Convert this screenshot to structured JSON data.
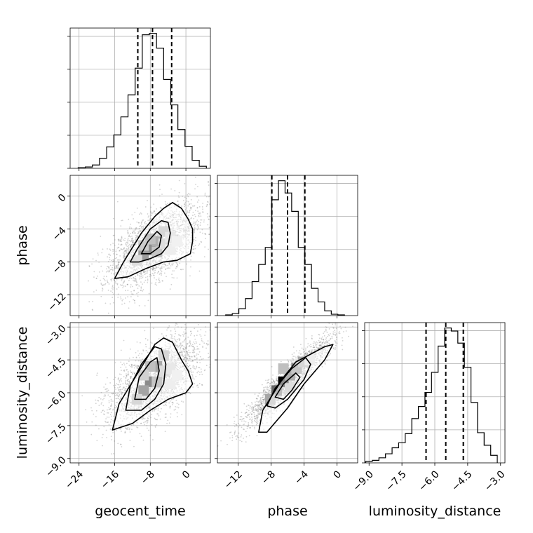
{
  "chart_data": {
    "type": "corner",
    "parameters": [
      "geocent_time",
      "phase",
      "luminosity_distance"
    ],
    "grid": true,
    "colors": {
      "line": "#000000",
      "grid": "#b0b0b0",
      "points": "#7f7f7f"
    },
    "ranges": {
      "geocent_time": [
        -26,
        5.5
      ],
      "phase": [
        -14.5,
        2.5
      ],
      "luminosity_distance": [
        -9.2,
        -2.8
      ]
    },
    "ticks": {
      "geocent_time": {
        "values": [
          -24,
          -16,
          -8,
          0
        ],
        "labels": [
          "−24",
          "−16",
          "−8",
          "0"
        ]
      },
      "phase": {
        "values": [
          -12,
          -8,
          -4,
          0
        ],
        "labels": [
          "−12",
          "−8",
          "−4",
          "0"
        ]
      },
      "luminosity_distance": {
        "values": [
          -9.0,
          -7.5,
          -6.0,
          -4.5,
          -3.0
        ],
        "labels": [
          "−9.0",
          "−7.5",
          "−6.0",
          "−4.5",
          "−3.0"
        ]
      }
    },
    "quantiles": {
      "geocent_time": [
        -10.8,
        -7.5,
        -3.2
      ],
      "phase": [
        -7.9,
        -6.0,
        -3.9
      ],
      "luminosity_distance": [
        -6.4,
        -5.5,
        -4.7
      ]
    },
    "histograms": {
      "geocent_time": {
        "edges": [
          -24.2,
          -22.6,
          -21.0,
          -19.4,
          -17.8,
          -16.2,
          -14.6,
          -13.0,
          -11.4,
          -9.8,
          -8.2,
          -6.6,
          -5.0,
          -3.4,
          -1.8,
          -0.2,
          1.4,
          3.0,
          4.6
        ],
        "counts": [
          1,
          2,
          5,
          15,
          32,
          50,
          77,
          110,
          150,
          200,
          202,
          180,
          133,
          95,
          58,
          33,
          12,
          3
        ]
      },
      "phase": {
        "edges": [
          -13.5,
          -12.7,
          -11.9,
          -11.1,
          -10.3,
          -9.5,
          -8.7,
          -7.9,
          -7.1,
          -6.3,
          -5.5,
          -4.7,
          -3.9,
          -3.1,
          -2.3,
          -1.5,
          -0.7,
          0.1,
          0.9
        ],
        "counts": [
          1,
          3,
          10,
          25,
          50,
          75,
          100,
          170,
          198,
          180,
          153,
          100,
          75,
          40,
          20,
          7,
          2,
          1
        ]
      },
      "luminosity_distance": {
        "edges": [
          -9.15,
          -8.85,
          -8.55,
          -8.25,
          -7.95,
          -7.65,
          -7.35,
          -7.05,
          -6.75,
          -6.45,
          -6.15,
          -5.85,
          -5.55,
          -5.25,
          -4.95,
          -4.65,
          -4.35,
          -4.05,
          -3.75,
          -3.45,
          -3.15
        ],
        "counts": [
          3,
          5,
          10,
          18,
          30,
          40,
          58,
          88,
          112,
          140,
          180,
          232,
          268,
          262,
          238,
          190,
          120,
          60,
          35,
          15
        ]
      }
    },
    "contours": {
      "phase_vs_geocent_time": [
        [
          [
            -16.0,
            -10.0
          ],
          [
            -14.0,
            -8.0
          ],
          [
            -10.0,
            -4.5
          ],
          [
            -7.0,
            -2.5
          ],
          [
            -5.0,
            -1.5
          ],
          [
            -3.0,
            -0.8
          ],
          [
            -1.0,
            -1.5
          ],
          [
            0.5,
            -2.8
          ],
          [
            1.5,
            -4.0
          ],
          [
            1.5,
            -5.5
          ],
          [
            1.0,
            -7.0
          ],
          [
            -2.0,
            -7.8
          ],
          [
            -5.0,
            -8.0
          ],
          [
            -9.0,
            -8.8
          ],
          [
            -13.0,
            -9.8
          ],
          [
            -16.0,
            -10.0
          ]
        ],
        [
          [
            -12.5,
            -8.0
          ],
          [
            -11.0,
            -6.5
          ],
          [
            -8.0,
            -4.0
          ],
          [
            -5.5,
            -3.0
          ],
          [
            -4.0,
            -3.2
          ],
          [
            -3.5,
            -4.5
          ],
          [
            -4.0,
            -6.0
          ],
          [
            -5.5,
            -7.0
          ],
          [
            -8.0,
            -7.6
          ],
          [
            -10.5,
            -8.0
          ],
          [
            -12.5,
            -8.0
          ]
        ],
        [
          [
            -10.0,
            -7.0
          ],
          [
            -8.5,
            -5.5
          ],
          [
            -6.5,
            -4.3
          ],
          [
            -5.5,
            -4.8
          ],
          [
            -6.0,
            -6.2
          ],
          [
            -8.0,
            -7.0
          ],
          [
            -10.0,
            -7.0
          ]
        ]
      ],
      "luminosity_distance_vs_geocent_time": [
        [
          [
            -16.5,
            -7.7
          ],
          [
            -15.0,
            -6.5
          ],
          [
            -12.0,
            -5.5
          ],
          [
            -9.0,
            -4.5
          ],
          [
            -7.0,
            -3.8
          ],
          [
            -5.0,
            -3.5
          ],
          [
            -3.0,
            -3.7
          ],
          [
            -1.0,
            -4.5
          ],
          [
            0.5,
            -5.0
          ],
          [
            1.5,
            -5.6
          ],
          [
            0.0,
            -6.0
          ],
          [
            -4.0,
            -6.3
          ],
          [
            -8.0,
            -6.8
          ],
          [
            -12.0,
            -7.4
          ],
          [
            -16.5,
            -7.7
          ]
        ],
        [
          [
            -13.5,
            -6.8
          ],
          [
            -12.5,
            -5.7
          ],
          [
            -10.0,
            -4.7
          ],
          [
            -7.0,
            -3.9
          ],
          [
            -5.5,
            -4.0
          ],
          [
            -4.5,
            -4.7
          ],
          [
            -5.0,
            -5.6
          ],
          [
            -7.0,
            -6.3
          ],
          [
            -10.0,
            -6.8
          ],
          [
            -13.5,
            -6.8
          ]
        ],
        [
          [
            -11.5,
            -6.3
          ],
          [
            -10.5,
            -5.3
          ],
          [
            -8.0,
            -4.6
          ],
          [
            -6.5,
            -4.4
          ],
          [
            -6.0,
            -5.0
          ],
          [
            -7.0,
            -5.8
          ],
          [
            -9.0,
            -6.3
          ],
          [
            -11.5,
            -6.3
          ]
        ]
      ],
      "luminosity_distance_vs_phase": [
        [
          [
            -9.5,
            -7.8
          ],
          [
            -9.0,
            -6.8
          ],
          [
            -6.5,
            -5.3
          ],
          [
            -5.0,
            -4.6
          ],
          [
            -3.0,
            -4.2
          ],
          [
            -1.5,
            -3.9
          ],
          [
            -0.5,
            -3.8
          ],
          [
            -1.5,
            -4.5
          ],
          [
            -4.0,
            -5.6
          ],
          [
            -6.0,
            -6.7
          ],
          [
            -8.5,
            -7.8
          ],
          [
            -9.5,
            -7.8
          ]
        ],
        [
          [
            -8.5,
            -6.6
          ],
          [
            -7.5,
            -5.8
          ],
          [
            -5.5,
            -4.9
          ],
          [
            -3.8,
            -4.4
          ],
          [
            -3.2,
            -4.7
          ],
          [
            -4.0,
            -5.4
          ],
          [
            -6.0,
            -6.3
          ],
          [
            -7.5,
            -6.7
          ],
          [
            -8.5,
            -6.6
          ]
        ],
        [
          [
            -7.5,
            -6.2
          ],
          [
            -6.5,
            -5.6
          ],
          [
            -5.0,
            -5.1
          ],
          [
            -4.5,
            -5.3
          ],
          [
            -5.5,
            -5.9
          ],
          [
            -6.5,
            -6.3
          ],
          [
            -7.5,
            -6.2
          ]
        ]
      ]
    },
    "density_cells": {
      "phase_vs_geocent_time": [
        {
          "x": -8,
          "y": -6.5,
          "level": 1.0
        },
        {
          "x": -9.5,
          "y": -7.2,
          "level": 0.85
        },
        {
          "x": -6.5,
          "y": -5.5,
          "level": 0.7
        },
        {
          "x": -8,
          "y": -5.2,
          "level": 0.55
        },
        {
          "x": -6.5,
          "y": -6.8,
          "level": 0.5
        },
        {
          "x": -9.5,
          "y": -6.0,
          "level": 0.45
        },
        {
          "x": -5,
          "y": -4.3,
          "level": 0.35
        },
        {
          "x": -5,
          "y": -5.8,
          "level": 0.3
        },
        {
          "x": -11,
          "y": -7.8,
          "level": 0.3
        },
        {
          "x": -3.5,
          "y": -5.0,
          "level": 0.2
        },
        {
          "x": -3.5,
          "y": -6.5,
          "level": 0.15
        },
        {
          "x": -2,
          "y": -5.5,
          "level": 0.12
        }
      ],
      "luminosity_distance_vs_geocent_time": [
        {
          "x": -8,
          "y": -5.5,
          "level": 1.0
        },
        {
          "x": -9.5,
          "y": -5.9,
          "level": 0.8
        },
        {
          "x": -6.5,
          "y": -4.8,
          "level": 0.75
        },
        {
          "x": -8,
          "y": -4.8,
          "level": 0.55
        },
        {
          "x": -6.5,
          "y": -5.5,
          "level": 0.5
        },
        {
          "x": -9.5,
          "y": -5.2,
          "level": 0.4
        },
        {
          "x": -5,
          "y": -4.3,
          "level": 0.35
        },
        {
          "x": -11,
          "y": -6.3,
          "level": 0.35
        },
        {
          "x": -5,
          "y": -5.0,
          "level": 0.3
        },
        {
          "x": -3.5,
          "y": -4.9,
          "level": 0.2
        },
        {
          "x": -3.5,
          "y": -5.6,
          "level": 0.15
        },
        {
          "x": -2,
          "y": -5.2,
          "level": 0.12
        }
      ],
      "luminosity_distance_vs_phase": [
        {
          "x": -6.5,
          "y": -5.5,
          "level": 1.0
        },
        {
          "x": -5.7,
          "y": -5.2,
          "level": 0.7
        },
        {
          "x": -7.3,
          "y": -5.9,
          "level": 0.6
        },
        {
          "x": -4.9,
          "y": -4.9,
          "level": 0.5
        },
        {
          "x": -4.1,
          "y": -4.6,
          "level": 0.35
        },
        {
          "x": -8.1,
          "y": -6.3,
          "level": 0.35
        },
        {
          "x": -5.7,
          "y": -5.8,
          "level": 0.3
        },
        {
          "x": -6.5,
          "y": -4.9,
          "level": 0.25
        },
        {
          "x": -3.3,
          "y": -4.5,
          "level": 0.15
        }
      ]
    },
    "scatter": {
      "phase_vs_geocent_time": {
        "mean": [
          -7.0,
          -6.0
        ],
        "sd": [
          5.2,
          2.6
        ],
        "corr": 0.6,
        "n": 2500,
        "seed": 11
      },
      "luminosity_distance_vs_geocent_time": {
        "mean": [
          -7.0,
          -5.5
        ],
        "sd": [
          5.2,
          1.0
        ],
        "corr": 0.6,
        "n": 2500,
        "seed": 23
      },
      "luminosity_distance_vs_phase": {
        "mean": [
          -6.0,
          -5.5
        ],
        "sd": [
          2.6,
          1.0
        ],
        "corr": 0.92,
        "n": 2000,
        "seed": 37
      }
    }
  }
}
